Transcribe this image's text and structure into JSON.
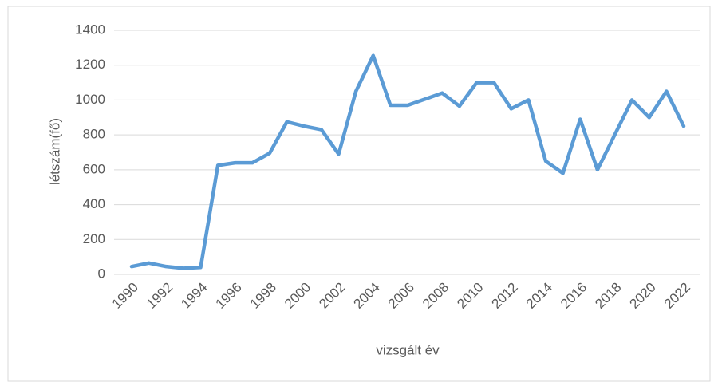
{
  "chart_data": {
    "type": "line",
    "x": [
      1990,
      1991,
      1992,
      1993,
      1994,
      1995,
      1996,
      1997,
      1998,
      1999,
      2000,
      2001,
      2002,
      2003,
      2004,
      2005,
      2006,
      2007,
      2008,
      2009,
      2010,
      2011,
      2012,
      2013,
      2014,
      2015,
      2016,
      2017,
      2018,
      2019,
      2020,
      2021,
      2022
    ],
    "values": [
      45,
      65,
      45,
      35,
      40,
      625,
      640,
      640,
      695,
      875,
      850,
      830,
      690,
      1050,
      1255,
      970,
      970,
      1005,
      1040,
      965,
      1100,
      1100,
      950,
      1000,
      650,
      580,
      890,
      600,
      800,
      1000,
      900,
      1050,
      850
    ],
    "color": "#5b9bd5",
    "xlim": [
      1990,
      2022
    ],
    "xticks": [
      1990,
      1992,
      1994,
      1996,
      1998,
      2000,
      2002,
      2004,
      2006,
      2008,
      2010,
      2012,
      2014,
      2016,
      2018,
      2020,
      2022
    ],
    "ylim": [
      0,
      1400
    ],
    "yticks": [
      0,
      200,
      400,
      600,
      800,
      1000,
      1200,
      1400
    ],
    "grid": true,
    "xlabel": "vizsgált év",
    "ylabel": "létszám(fő)"
  }
}
